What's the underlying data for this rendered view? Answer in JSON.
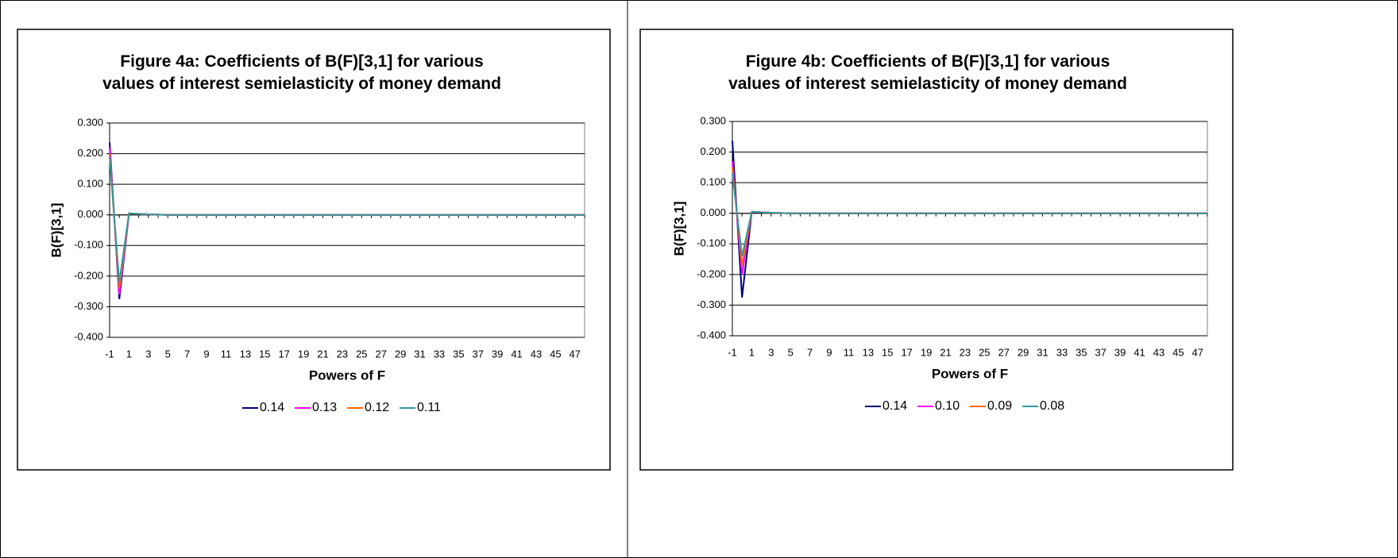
{
  "chart_data": [
    {
      "type": "line",
      "title": "Figure 4a: Coefficients of B(F)[3,1] for various values of interest semielasticity of money demand",
      "x_label": "Powers of F",
      "y_label": "B(F)[3,1]",
      "categories": [
        "-1",
        null,
        "1",
        null,
        "3",
        null,
        "5",
        null,
        "7",
        null,
        "9",
        null,
        "11",
        null,
        "13",
        null,
        "15",
        null,
        "17",
        null,
        "19",
        null,
        "21",
        null,
        "23",
        null,
        "25",
        null,
        "27",
        null,
        "29",
        null,
        "31",
        null,
        "33",
        null,
        "35",
        null,
        "37",
        null,
        "39",
        null,
        "41",
        null,
        "43",
        null,
        "45",
        null,
        "47",
        null
      ],
      "ylim": [
        -0.4,
        0.3
      ],
      "yticks": [
        {
          "value": -0.4,
          "label": "-0.400"
        },
        {
          "value": -0.3,
          "label": "-0.300"
        },
        {
          "value": -0.2,
          "label": "-0.200"
        },
        {
          "value": -0.1,
          "label": "-0.100"
        },
        {
          "value": 0,
          "label": "0.000"
        },
        {
          "value": 0.1,
          "label": "0.100"
        },
        {
          "value": 0.2,
          "label": "0.200"
        },
        {
          "value": 0.3,
          "label": "0.300"
        }
      ],
      "grid": true,
      "legend": "bottom",
      "series": [
        {
          "name": "0.14",
          "color": "#000080",
          "values": [
            0.237,
            -0.275,
            0.005,
            0.003,
            0.002,
            0.001,
            0,
            0,
            0,
            0,
            0,
            0,
            0,
            0,
            0,
            0,
            0,
            0,
            0,
            0,
            0,
            0,
            0,
            0,
            0,
            0,
            0,
            0,
            0,
            0,
            0,
            0,
            0,
            0,
            0,
            0,
            0,
            0,
            0,
            0,
            0,
            0,
            0,
            0,
            0,
            0,
            0,
            0,
            0,
            0
          ]
        },
        {
          "name": "0.13",
          "color": "#ff00ff",
          "values": [
            0.22,
            -0.26,
            0.005,
            0.003,
            0.002,
            0.001,
            0,
            0,
            0,
            0,
            0,
            0,
            0,
            0,
            0,
            0,
            0,
            0,
            0,
            0,
            0,
            0,
            0,
            0,
            0,
            0,
            0,
            0,
            0,
            0,
            0,
            0,
            0,
            0,
            0,
            0,
            0,
            0,
            0,
            0,
            0,
            0,
            0,
            0,
            0,
            0,
            0,
            0,
            0,
            0
          ]
        },
        {
          "name": "0.12",
          "color": "#ff6600",
          "values": [
            0.2,
            -0.24,
            0.005,
            0.003,
            0.002,
            0.001,
            0,
            0,
            0,
            0,
            0,
            0,
            0,
            0,
            0,
            0,
            0,
            0,
            0,
            0,
            0,
            0,
            0,
            0,
            0,
            0,
            0,
            0,
            0,
            0,
            0,
            0,
            0,
            0,
            0,
            0,
            0,
            0,
            0,
            0,
            0,
            0,
            0,
            0,
            0,
            0,
            0,
            0,
            0,
            0
          ]
        },
        {
          "name": "0.11",
          "color": "#339999",
          "values": [
            0.19,
            -0.22,
            0.005,
            0.003,
            0.002,
            0.001,
            0,
            0,
            0,
            0,
            0,
            0,
            0,
            0,
            0,
            0,
            0,
            0,
            0,
            0,
            0,
            0,
            0,
            0,
            0,
            0,
            0,
            0,
            0,
            0,
            0,
            0,
            0,
            0,
            0,
            0,
            0,
            0,
            0,
            0,
            0,
            0,
            0,
            0,
            0,
            0,
            0,
            0,
            0,
            0
          ]
        }
      ]
    },
    {
      "type": "line",
      "title": "Figure 4b: Coefficients of B(F)[3,1] for various values of interest semielasticity of money demand",
      "x_label": "Powers of F",
      "y_label": "B(F)[3,1]",
      "categories": [
        "-1",
        null,
        "1",
        null,
        "3",
        null,
        "5",
        null,
        "7",
        null,
        "9",
        null,
        "11",
        null,
        "13",
        null,
        "15",
        null,
        "17",
        null,
        "19",
        null,
        "21",
        null,
        "23",
        null,
        "25",
        null,
        "27",
        null,
        "29",
        null,
        "31",
        null,
        "33",
        null,
        "35",
        null,
        "37",
        null,
        "39",
        null,
        "41",
        null,
        "43",
        null,
        "45",
        null,
        "47",
        null
      ],
      "ylim": [
        -0.4,
        0.3
      ],
      "yticks": [
        {
          "value": -0.4,
          "label": "-0.400"
        },
        {
          "value": -0.3,
          "label": "-0.300"
        },
        {
          "value": -0.2,
          "label": "-0.200"
        },
        {
          "value": -0.1,
          "label": "-0.100"
        },
        {
          "value": 0,
          "label": "0.000"
        },
        {
          "value": 0.1,
          "label": "0.100"
        },
        {
          "value": 0.2,
          "label": "0.200"
        },
        {
          "value": 0.3,
          "label": "0.300"
        }
      ],
      "grid": true,
      "legend": "bottom",
      "series": [
        {
          "name": "0.14",
          "color": "#000080",
          "values": [
            0.237,
            -0.275,
            0.005,
            0.003,
            0.002,
            0.001,
            0,
            0,
            0,
            0,
            0,
            0,
            0,
            0,
            0,
            0,
            0,
            0,
            0,
            0,
            0,
            0,
            0,
            0,
            0,
            0,
            0,
            0,
            0,
            0,
            0,
            0,
            0,
            0,
            0,
            0,
            0,
            0,
            0,
            0,
            0,
            0,
            0,
            0,
            0,
            0,
            0,
            0,
            0,
            0
          ]
        },
        {
          "name": "0.10",
          "color": "#ff00ff",
          "values": [
            0.17,
            -0.2,
            0.005,
            0.003,
            0.002,
            0.001,
            0,
            0,
            0,
            0,
            0,
            0,
            0,
            0,
            0,
            0,
            0,
            0,
            0,
            0,
            0,
            0,
            0,
            0,
            0,
            0,
            0,
            0,
            0,
            0,
            0,
            0,
            0,
            0,
            0,
            0,
            0,
            0,
            0,
            0,
            0,
            0,
            0,
            0,
            0,
            0,
            0,
            0,
            0,
            0
          ]
        },
        {
          "name": "0.09",
          "color": "#ff6600",
          "values": [
            0.15,
            -0.17,
            0.005,
            0.003,
            0.002,
            0.001,
            0,
            0,
            0,
            0,
            0,
            0,
            0,
            0,
            0,
            0,
            0,
            0,
            0,
            0,
            0,
            0,
            0,
            0,
            0,
            0,
            0,
            0,
            0,
            0,
            0,
            0,
            0,
            0,
            0,
            0,
            0,
            0,
            0,
            0,
            0,
            0,
            0,
            0,
            0,
            0,
            0,
            0,
            0,
            0
          ]
        },
        {
          "name": "0.08",
          "color": "#339999",
          "values": [
            0.13,
            -0.14,
            0.005,
            0.003,
            0.002,
            0.001,
            0,
            0,
            0,
            0,
            0,
            0,
            0,
            0,
            0,
            0,
            0,
            0,
            0,
            0,
            0,
            0,
            0,
            0,
            0,
            0,
            0,
            0,
            0,
            0,
            0,
            0,
            0,
            0,
            0,
            0,
            0,
            0,
            0,
            0,
            0,
            0,
            0,
            0,
            0,
            0,
            0,
            0,
            0,
            0
          ]
        }
      ]
    }
  ]
}
